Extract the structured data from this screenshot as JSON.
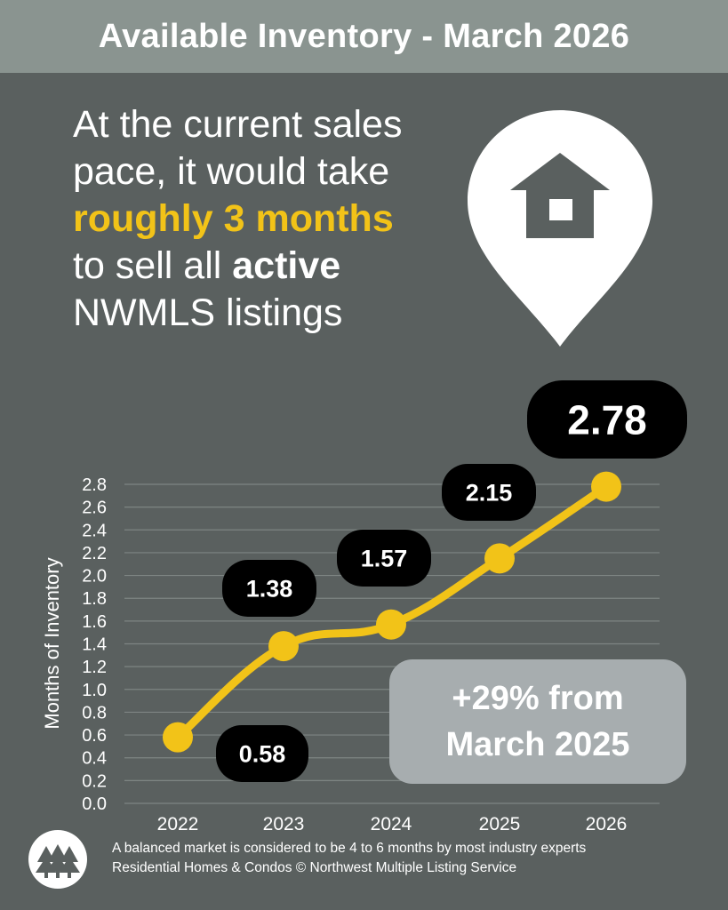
{
  "header": {
    "title": "Available Inventory - March 2026"
  },
  "headline": {
    "line1": "At the current sales",
    "line2": "pace, it would take",
    "highlight": "roughly 3 months",
    "line4_prefix": "to sell all ",
    "line4_bold": "active",
    "line5": "NWMLS listings"
  },
  "icons": {
    "pin": "map-pin-house-icon",
    "logo": "nwmls-logo-icon"
  },
  "colors": {
    "background": "#5a605f",
    "header": "#8a9490",
    "line": "#f2c318",
    "label_bg": "#000000",
    "callout_bg": "#a7adaf"
  },
  "callout": {
    "line1": "+29% from",
    "line2": "March 2025"
  },
  "footer": {
    "note": "A balanced market is considered to be 4 to 6 months by most industry experts",
    "source": "Residential Homes & Condos © Northwest Multiple Listing Service"
  },
  "chart_data": {
    "type": "line",
    "categories": [
      "2022",
      "2023",
      "2024",
      "2025",
      "2026"
    ],
    "values": [
      0.58,
      1.38,
      1.57,
      2.15,
      2.78
    ],
    "data_labels": [
      "0.58",
      "1.38",
      "1.57",
      "2.15",
      "2.78"
    ],
    "ylabel": "Months of Inventory",
    "xlabel": "",
    "ylim": [
      0,
      2.8
    ],
    "yticks": [
      "0.0",
      "0.2",
      "0.4",
      "0.6",
      "0.8",
      "1.0",
      "1.2",
      "1.4",
      "1.6",
      "1.8",
      "2.0",
      "2.2",
      "2.4",
      "2.6",
      "2.8"
    ],
    "grid": true,
    "legend": "none"
  }
}
